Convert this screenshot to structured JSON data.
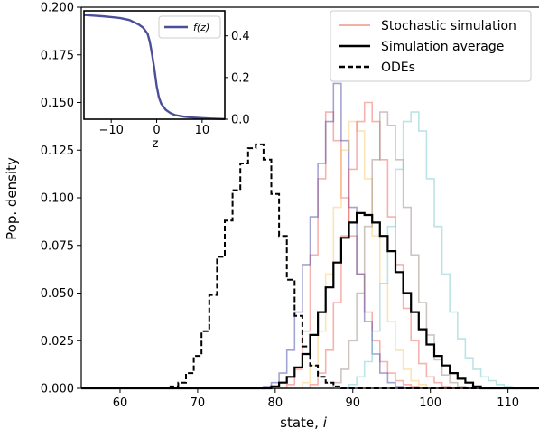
{
  "chart_data": [
    {
      "type": "line",
      "step": true,
      "xlabel": "state, i",
      "ylabel": "Pop. density",
      "xlim": [
        55,
        114
      ],
      "ylim": [
        0,
        0.2
      ],
      "xticks": [
        60,
        70,
        80,
        90,
        100,
        110
      ],
      "yticks": [
        "0.000",
        "0.025",
        "0.050",
        "0.075",
        "0.100",
        "0.125",
        "0.150",
        "0.175",
        "0.200"
      ],
      "grid": false,
      "legend_position": "top-right",
      "legend": [
        {
          "label": "Stochastic simulation",
          "style": "thin-translucent",
          "color": "#f2a49a"
        },
        {
          "label": "Simulation average",
          "style": "solid",
          "color": "#000000"
        },
        {
          "label": "ODEs",
          "style": "dashed",
          "color": "#000000"
        }
      ],
      "series": [
        {
          "group": "Stochastic simulation",
          "color": "#e8574d",
          "opacity": 0.45,
          "x": [
            82,
            83,
            84,
            85,
            86,
            87,
            88,
            89,
            90,
            91,
            92,
            93,
            94,
            95,
            96,
            97,
            98,
            99,
            100
          ],
          "y": [
            0.002,
            0.01,
            0.03,
            0.07,
            0.11,
            0.145,
            0.13,
            0.1,
            0.08,
            0.06,
            0.04,
            0.025,
            0.014,
            0.008,
            0.004,
            0.002,
            0.001,
            0.0005,
            0
          ]
        },
        {
          "group": "Stochastic simulation",
          "color": "#4a4aa8",
          "opacity": 0.5,
          "x": [
            79,
            80,
            81,
            82,
            83,
            84,
            85,
            86,
            87,
            88,
            89,
            90,
            91,
            92,
            93,
            94,
            95,
            96,
            97,
            98,
            99
          ],
          "y": [
            0.001,
            0.003,
            0.008,
            0.02,
            0.04,
            0.065,
            0.09,
            0.118,
            0.14,
            0.16,
            0.13,
            0.095,
            0.06,
            0.035,
            0.018,
            0.008,
            0.003,
            0.001,
            0.0005,
            0,
            0
          ]
        },
        {
          "group": "Stochastic simulation",
          "color": "#f7c35a",
          "opacity": 0.45,
          "x": [
            84,
            85,
            86,
            87,
            88,
            89,
            90,
            91,
            92,
            93,
            94,
            95,
            96,
            97,
            98,
            99,
            100,
            101
          ],
          "y": [
            0.003,
            0.012,
            0.03,
            0.06,
            0.095,
            0.125,
            0.14,
            0.135,
            0.11,
            0.08,
            0.055,
            0.035,
            0.02,
            0.01,
            0.004,
            0.002,
            0.0005,
            0
          ]
        },
        {
          "group": "Stochastic simulation",
          "color": "#e8574d",
          "opacity": 0.45,
          "x": [
            85,
            86,
            87,
            88,
            89,
            90,
            91,
            92,
            93,
            94,
            95,
            96,
            97,
            98,
            99,
            100,
            101,
            102,
            103
          ],
          "y": [
            0.002,
            0.008,
            0.02,
            0.045,
            0.08,
            0.115,
            0.14,
            0.15,
            0.14,
            0.12,
            0.09,
            0.065,
            0.042,
            0.025,
            0.013,
            0.006,
            0.003,
            0.001,
            0
          ]
        },
        {
          "group": "Stochastic simulation",
          "color": "#9b8a86",
          "opacity": 0.5,
          "x": [
            88,
            89,
            90,
            91,
            92,
            93,
            94,
            95,
            96,
            97,
            98,
            99,
            100,
            101,
            102,
            103,
            104,
            105
          ],
          "y": [
            0.003,
            0.01,
            0.025,
            0.05,
            0.085,
            0.12,
            0.145,
            0.138,
            0.12,
            0.095,
            0.07,
            0.045,
            0.028,
            0.015,
            0.007,
            0.003,
            0.001,
            0
          ]
        },
        {
          "group": "Stochastic simulation",
          "color": "#7ac9c9",
          "opacity": 0.5,
          "x": [
            90,
            91,
            92,
            93,
            94,
            95,
            96,
            97,
            98,
            99,
            100,
            101,
            102,
            103,
            104,
            105,
            106,
            107,
            108,
            109,
            110,
            111
          ],
          "y": [
            0.002,
            0.006,
            0.014,
            0.03,
            0.055,
            0.085,
            0.115,
            0.14,
            0.145,
            0.135,
            0.11,
            0.085,
            0.06,
            0.04,
            0.026,
            0.016,
            0.01,
            0.006,
            0.004,
            0.002,
            0.001,
            0
          ]
        },
        {
          "name": "Simulation average",
          "color": "#000000",
          "width": 2.2,
          "x": [
            80,
            81,
            82,
            83,
            84,
            85,
            86,
            87,
            88,
            89,
            90,
            91,
            92,
            93,
            94,
            95,
            96,
            97,
            98,
            99,
            100,
            101,
            102,
            103,
            104,
            105,
            106,
            107
          ],
          "y": [
            0.001,
            0.003,
            0.006,
            0.011,
            0.018,
            0.028,
            0.04,
            0.053,
            0.066,
            0.079,
            0.087,
            0.092,
            0.091,
            0.087,
            0.08,
            0.072,
            0.061,
            0.05,
            0.04,
            0.031,
            0.023,
            0.017,
            0.012,
            0.008,
            0.005,
            0.003,
            0.001,
            0
          ]
        },
        {
          "name": "ODEs",
          "color": "#000000",
          "width": 2,
          "dash": "6,3",
          "x": [
            67,
            68,
            69,
            70,
            71,
            72,
            73,
            74,
            75,
            76,
            77,
            78,
            79,
            80,
            81,
            82,
            83,
            84,
            85,
            86,
            87,
            88,
            89
          ],
          "y": [
            0.001,
            0.003,
            0.008,
            0.017,
            0.03,
            0.049,
            0.069,
            0.088,
            0.104,
            0.118,
            0.126,
            0.128,
            0.12,
            0.102,
            0.08,
            0.057,
            0.038,
            0.022,
            0.012,
            0.006,
            0.003,
            0.001,
            0
          ]
        }
      ]
    },
    {
      "type": "line",
      "inset": true,
      "xlabel": "z",
      "xlim": [
        -16,
        15
      ],
      "ylim": [
        0,
        0.52
      ],
      "xticks": [
        -10,
        0,
        10
      ],
      "yticks": [
        "0.0",
        "0.2",
        "0.4"
      ],
      "legend_position": "top-right",
      "series": [
        {
          "name": "f(z)",
          "color": "#4b4f9a",
          "x": [
            -16,
            -14,
            -12,
            -10,
            -8,
            -6,
            -4,
            -3,
            -2,
            -1.5,
            -1,
            -0.5,
            0,
            0.5,
            1,
            2,
            3,
            4,
            6,
            8,
            10,
            12,
            15
          ],
          "y": [
            0.5,
            0.497,
            0.494,
            0.49,
            0.485,
            0.476,
            0.455,
            0.44,
            0.41,
            0.37,
            0.31,
            0.24,
            0.16,
            0.105,
            0.075,
            0.045,
            0.03,
            0.02,
            0.012,
            0.008,
            0.005,
            0.003,
            0.001
          ]
        }
      ]
    }
  ]
}
